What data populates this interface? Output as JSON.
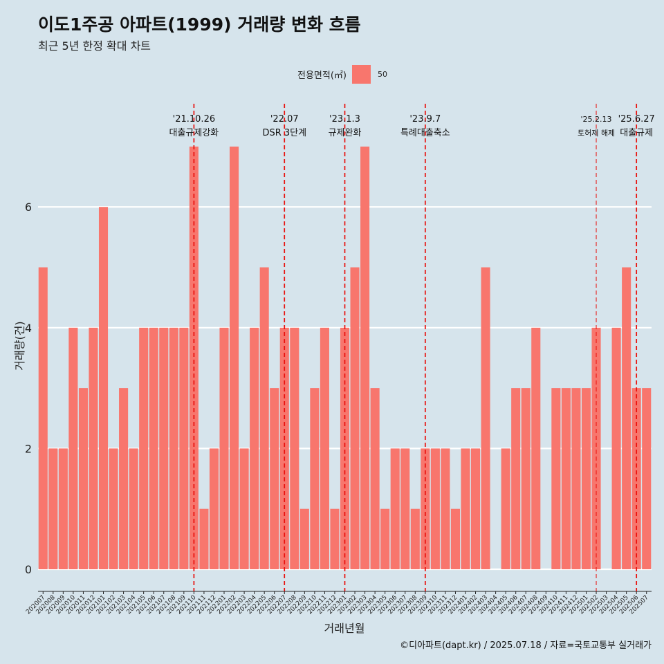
{
  "header": {
    "title": "이도1주공 아파트(1999) 거래량 변화 흐름",
    "subtitle": "최근 5년 한정 확대 차트"
  },
  "legend": {
    "title": "전용면적(㎡)",
    "label": "50",
    "color": "#f8766d"
  },
  "caption": "©디아파트(dapt.kr) / 2025.07.18 / 자료=국토교통부 실거래가",
  "chart_data": {
    "type": "bar",
    "xlabel": "거래년월",
    "ylabel": "거래량(건)",
    "ylim": [
      0,
      7
    ],
    "yticks": [
      0,
      2,
      4,
      6
    ],
    "grid": true,
    "legend_position": "top",
    "bar_color": "#f8766d",
    "categories": [
      "202007",
      "202008",
      "202009",
      "202010",
      "202011",
      "202012",
      "202101",
      "202102",
      "202103",
      "202104",
      "202105",
      "202106",
      "202107",
      "202108",
      "202109",
      "202110",
      "202111",
      "202112",
      "202201",
      "202202",
      "202203",
      "202204",
      "202205",
      "202206",
      "202207",
      "202208",
      "202209",
      "202210",
      "202211",
      "202212",
      "202301",
      "202302",
      "202303",
      "202304",
      "202305",
      "202306",
      "202307",
      "202308",
      "202309",
      "202310",
      "202311",
      "202312",
      "202401",
      "202402",
      "202403",
      "202404",
      "202405",
      "202406",
      "202407",
      "202408",
      "202409",
      "202410",
      "202411",
      "202412",
      "202501",
      "202502",
      "202503",
      "202504",
      "202505",
      "202506",
      "202507"
    ],
    "series": [
      {
        "name": "50",
        "values": [
          5,
          2,
          2,
          4,
          3,
          4,
          6,
          2,
          3,
          2,
          4,
          4,
          4,
          4,
          4,
          7,
          1,
          2,
          4,
          7,
          2,
          4,
          5,
          3,
          4,
          4,
          1,
          3,
          4,
          1,
          4,
          5,
          7,
          3,
          1,
          2,
          2,
          1,
          2,
          2,
          2,
          1,
          2,
          2,
          5,
          0,
          2,
          3,
          3,
          4,
          0,
          3,
          3,
          3,
          3,
          4,
          0,
          4,
          5,
          3,
          3
        ]
      }
    ],
    "annotations": [
      {
        "category": "202110",
        "date": "'21.10.26",
        "text": "대출규제강화"
      },
      {
        "category": "202207",
        "date": "'22.07",
        "text": "DSR 3단계"
      },
      {
        "category": "202301",
        "date": "'23.1.3",
        "text": "규제완화"
      },
      {
        "category": "202309",
        "date": "'23.9.7",
        "text": "특례대출축소"
      },
      {
        "category": "202502",
        "date": "'25.2.13",
        "text": "토허제 해제"
      },
      {
        "category": "202506",
        "date": "'25.6.27",
        "text": "대출규제"
      }
    ]
  }
}
